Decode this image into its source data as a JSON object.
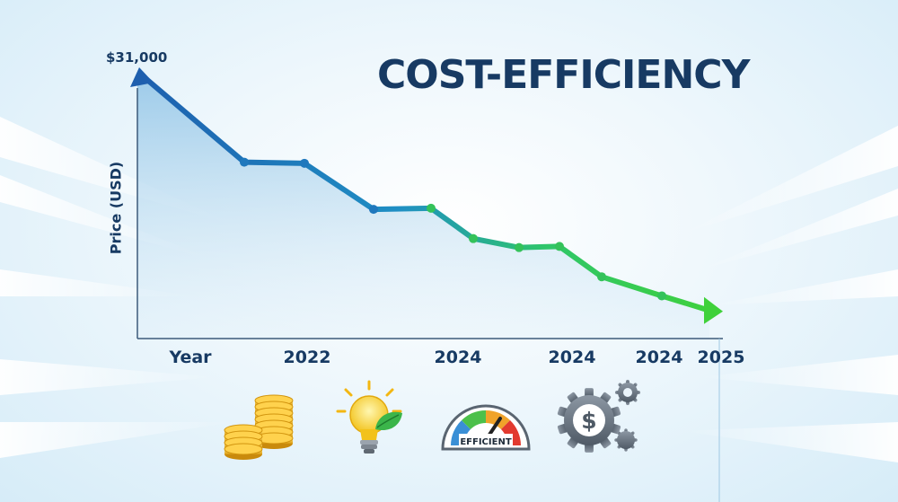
{
  "chart_data": {
    "type": "line",
    "title": "COST-EFFICIENCY",
    "ylabel": "Price (USD)",
    "ytick_max": "$31,000",
    "x_labels": [
      "Year",
      "2022",
      "2024",
      "2024",
      "2024",
      "2025"
    ],
    "series": [
      {
        "values": [
          31000,
          23200,
          23100,
          19000,
          19100,
          16400,
          15600,
          15700,
          13000,
          11300,
          10000
        ]
      }
    ],
    "ylim": [
      7500,
      31000
    ],
    "colors": {
      "start": "#1e5fae",
      "end": "#3fd13a",
      "title": "#173a63"
    }
  },
  "icons": [
    "coin-stack-icon",
    "lightbulb-leaf-icon",
    "efficiency-gauge-icon",
    "dollar-gear-icon"
  ],
  "gauge_label": "EFFICIENT"
}
